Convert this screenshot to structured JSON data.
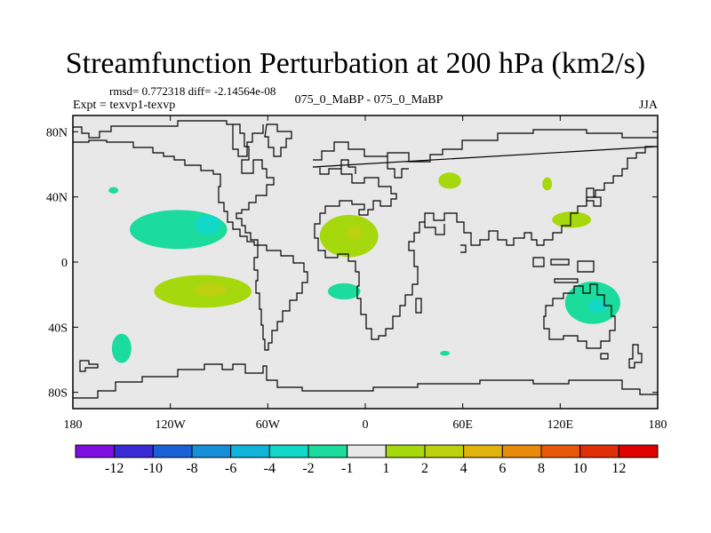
{
  "header": {
    "title": "Streamfunction Perturbation at 200 hPa (km2/s)",
    "stats": "rmsd= 0.772318 diff= -2.14564e-08",
    "left_label": "Expt = texvp1-texvp",
    "center_label": "075_0_MaBP - 075_0_MaBP",
    "right_label": "JJA"
  },
  "chart_data": {
    "type": "heatmap",
    "title": "Streamfunction Perturbation at 200 hPa (km2/s)",
    "xlabel": "",
    "ylabel": "",
    "xlim": [
      -180,
      180
    ],
    "ylim": [
      -90,
      90
    ],
    "x_ticks": [
      {
        "value": -180,
        "label": "180"
      },
      {
        "value": -120,
        "label": "120W"
      },
      {
        "value": -60,
        "label": "60W"
      },
      {
        "value": 0,
        "label": "0"
      },
      {
        "value": 60,
        "label": "60E"
      },
      {
        "value": 120,
        "label": "120E"
      },
      {
        "value": 180,
        "label": "180"
      }
    ],
    "y_ticks": [
      {
        "value": 80,
        "label": "80N"
      },
      {
        "value": 40,
        "label": "40N"
      },
      {
        "value": 0,
        "label": "0"
      },
      {
        "value": -40,
        "label": "40S"
      },
      {
        "value": -80,
        "label": "80S"
      }
    ],
    "colorbar": {
      "colors": [
        "#7f0fe0",
        "#3a2ad6",
        "#1a60d8",
        "#158fd8",
        "#10b4d8",
        "#12d8c8",
        "#1bdc9c",
        "#e8e8e8",
        "#a6d80e",
        "#bcd010",
        "#e0b40c",
        "#e88a0a",
        "#e85808",
        "#e02e06",
        "#e00000"
      ],
      "labels": [
        "-12",
        "-10",
        "-8",
        "-6",
        "-4",
        "-2",
        "-1",
        "1",
        "2",
        "4",
        "6",
        "8",
        "10",
        "12"
      ]
    },
    "anomalies": [
      {
        "name": "north-pacific-negative",
        "lon": -115,
        "lat": 20,
        "rlon": 30,
        "rlat": 12,
        "level": "-1"
      },
      {
        "name": "north-pacific-core",
        "lon": -97,
        "lat": 23,
        "rlon": 8,
        "rlat": 6,
        "level": "-2"
      },
      {
        "name": "south-pacific-positive",
        "lon": -100,
        "lat": -18,
        "rlon": 30,
        "rlat": 10,
        "level": "1"
      },
      {
        "name": "south-pacific-core",
        "lon": -95,
        "lat": -17,
        "rlon": 10,
        "rlat": 4,
        "level": "2"
      },
      {
        "name": "africa-positive",
        "lon": -10,
        "lat": 16,
        "rlon": 18,
        "rlat": 13,
        "level": "1"
      },
      {
        "name": "africa-core",
        "lon": -7,
        "lat": 18,
        "rlon": 5,
        "rlat": 4,
        "level": "2"
      },
      {
        "name": "south-atlantic-negative",
        "lon": -13,
        "lat": -18,
        "rlon": 10,
        "rlat": 5,
        "level": "-1"
      },
      {
        "name": "australia-negative",
        "lon": 140,
        "lat": -25,
        "rlon": 17,
        "rlat": 13,
        "level": "-1"
      },
      {
        "name": "australia-core",
        "lon": 143,
        "lat": -27,
        "rlon": 6,
        "rlat": 4,
        "level": "-2"
      },
      {
        "name": "south-pacific-west-negative",
        "lon": -150,
        "lat": -53,
        "rlon": 6,
        "rlat": 9,
        "level": "-1"
      },
      {
        "name": "north-pacific-small-negative",
        "lon": -155,
        "lat": 44,
        "rlon": 3,
        "rlat": 2,
        "level": "-1"
      },
      {
        "name": "central-asia-positive",
        "lon": 52,
        "lat": 50,
        "rlon": 7,
        "rlat": 5,
        "level": "1"
      },
      {
        "name": "east-asia-positive",
        "lon": 112,
        "lat": 48,
        "rlon": 3,
        "rlat": 4,
        "level": "1"
      },
      {
        "name": "china-positive",
        "lon": 127,
        "lat": 26,
        "rlon": 12,
        "rlat": 5,
        "level": "1"
      },
      {
        "name": "indian-ocean-negative",
        "lon": 49,
        "lat": -56,
        "rlon": 3,
        "rlat": 1.5,
        "level": "-1"
      }
    ]
  }
}
